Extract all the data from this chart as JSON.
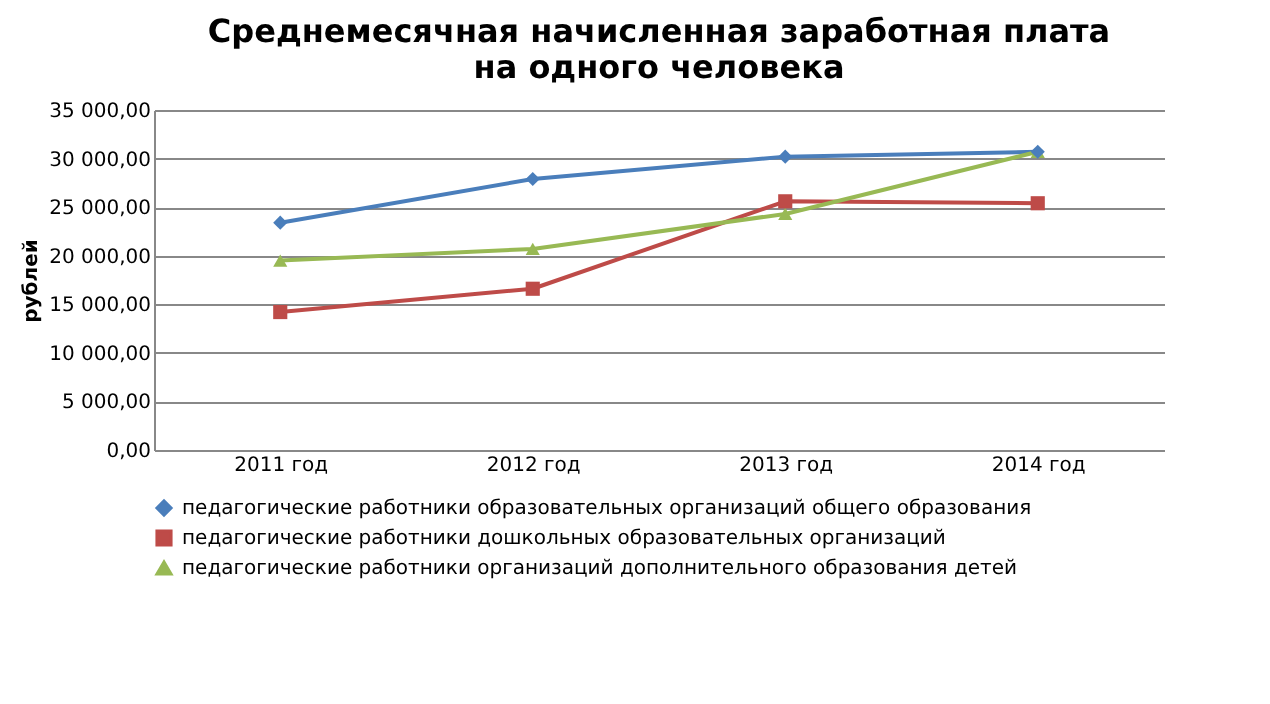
{
  "chart_data": {
    "type": "line",
    "title": "Среднемесячная начисленная заработная плата\nна одного человека",
    "ylabel": "рублей",
    "categories": [
      "2011 год",
      "2012 год",
      "2013 год",
      "2014 год"
    ],
    "series": [
      {
        "name": "педагогические работники образовательных организаций общего образования",
        "color": "#4a7ebb",
        "marker": "diamond",
        "values": [
          23400,
          27900,
          30200,
          30700
        ]
      },
      {
        "name": "педагогические работники дошкольных образовательных организаций",
        "color": "#be4b48",
        "marker": "square",
        "values": [
          14200,
          16600,
          25600,
          25400
        ]
      },
      {
        "name": "педагогические работники организаций дополнительного образования детей",
        "color": "#98b954",
        "marker": "triangle",
        "values": [
          19500,
          20700,
          24300,
          30700
        ]
      }
    ],
    "ylim": [
      0,
      35000
    ],
    "yticks": [
      {
        "value": 0,
        "label": "0,00"
      },
      {
        "value": 5000,
        "label": "5 000,00"
      },
      {
        "value": 10000,
        "label": "10 000,00"
      },
      {
        "value": 15000,
        "label": "15 000,00"
      },
      {
        "value": 20000,
        "label": "20 000,00"
      },
      {
        "value": 25000,
        "label": "25 000,00"
      },
      {
        "value": 30000,
        "label": "30 000,00"
      },
      {
        "value": 35000,
        "label": "35 000,00"
      }
    ],
    "grid": "y",
    "legend": "bottom",
    "line_style": "solid"
  }
}
